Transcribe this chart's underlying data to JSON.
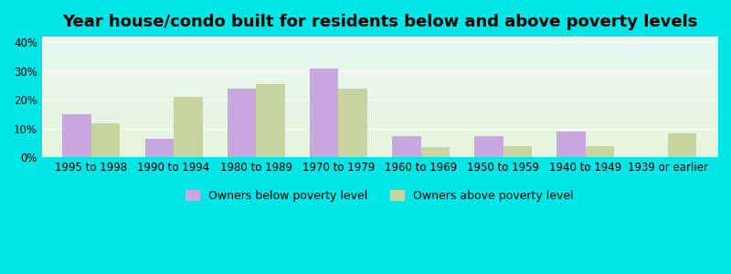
{
  "title": "Year house/condo built for residents below and above poverty levels",
  "categories": [
    "1995 to 1998",
    "1990 to 1994",
    "1980 to 1989",
    "1970 to 1979",
    "1960 to 1969",
    "1950 to 1959",
    "1940 to 1949",
    "1939 or earlier"
  ],
  "below_poverty": [
    15,
    6.5,
    24,
    31,
    7.5,
    7.5,
    9,
    0
  ],
  "above_poverty": [
    12,
    21,
    25.5,
    24,
    3.5,
    4,
    4,
    8.5
  ],
  "below_color": "#c9a8e0",
  "above_color": "#c8d4a0",
  "bar_width": 0.35,
  "ylim": [
    0,
    42
  ],
  "yticks": [
    0,
    10,
    20,
    30,
    40
  ],
  "ytick_labels": [
    "0%",
    "10%",
    "20%",
    "30%",
    "40%"
  ],
  "outer_bg": "#00e5e5",
  "legend_below": "Owners below poverty level",
  "legend_above": "Owners above poverty level",
  "title_fontsize": 13,
  "tick_fontsize": 8.5,
  "legend_fontsize": 9
}
